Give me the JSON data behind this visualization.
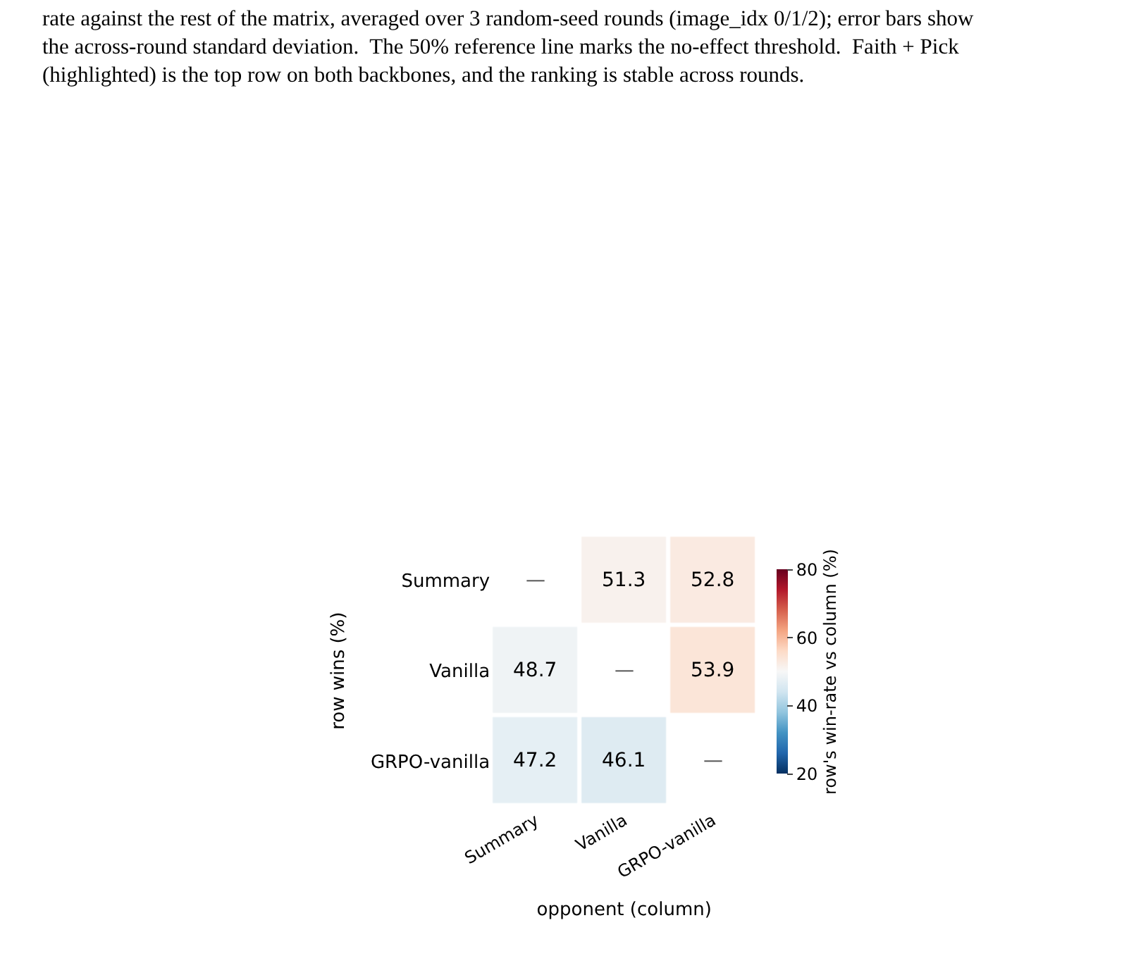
{
  "chart_data": {
    "type": "heatmap",
    "categories": [
      "Summary",
      "Vanilla",
      "GRPO-vanilla"
    ],
    "y_categories": [
      "Summary",
      "Vanilla",
      "GRPO-vanilla"
    ],
    "cells": [
      [
        null,
        51.3,
        52.8
      ],
      [
        48.7,
        null,
        53.9
      ],
      [
        47.2,
        46.1,
        null
      ]
    ],
    "cell_labels": [
      [
        "—",
        "51.3",
        "52.8"
      ],
      [
        "48.7",
        "—",
        "53.9"
      ],
      [
        "47.2",
        "46.1",
        "—"
      ]
    ],
    "clim": [
      20,
      80
    ],
    "cticks": [
      20,
      40,
      60,
      80
    ],
    "xlabel": "opponent (column)",
    "ylabel": "row wins (%)",
    "clabel": "row's win-rate vs column (%)",
    "annotations": [
      "rate against the rest of the matrix, averaged over 3 random-seed rounds (image_idx 0/1/2); error bars show",
      "the across-round standard deviation.  The 50% reference line marks the no-effect threshold.  Faith + Pick",
      "(highlighted) is the top row on both backbones, and the ranking is stable across rounds."
    ]
  }
}
